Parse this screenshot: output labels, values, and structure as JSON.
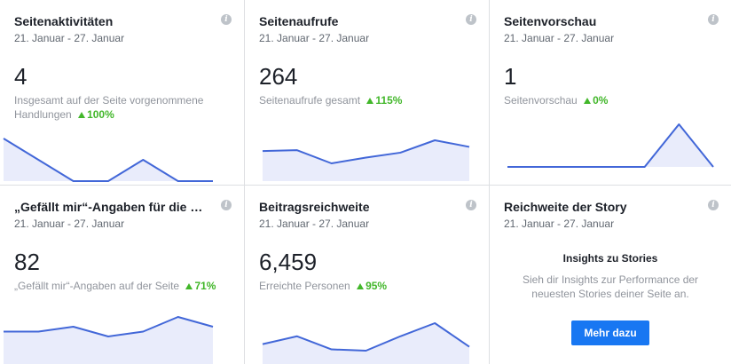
{
  "cards": [
    {
      "title": "Seitenaktivitäten",
      "date": "21. Januar - 27. Januar",
      "value": "4",
      "desc": "Insgesamt auf der Seite vorgenommene Handlungen",
      "change": "100%",
      "spark": [
        4,
        3,
        2,
        2,
        3,
        2,
        2
      ]
    },
    {
      "title": "Seitenaufrufe",
      "date": "21. Januar - 27. Januar",
      "value": "264",
      "desc": "Seitenaufrufe gesamt",
      "change": "115%",
      "spark": [
        35,
        36,
        20,
        27,
        33,
        48,
        40
      ]
    },
    {
      "title": "Seitenvorschau",
      "date": "21. Januar - 27. Januar",
      "value": "1",
      "desc": "Seitenvorschau",
      "change": "0%",
      "spark": [
        0,
        0,
        0,
        0,
        0,
        1,
        0
      ]
    },
    {
      "title": "„Gefällt mir“-Angaben für die …",
      "date": "21. Januar - 27. Januar",
      "value": "82",
      "desc": "„Gefällt mir“-Angaben auf der Seite",
      "change": "71%",
      "spark": [
        81,
        81,
        82,
        80,
        81,
        84,
        82
      ]
    },
    {
      "title": "Beitragsreichweite",
      "date": "21. Januar - 27. Januar",
      "value": "6,459",
      "desc": "Erreichte Personen",
      "change": "95%",
      "spark": [
        700,
        1000,
        500,
        450,
        1000,
        1500,
        600
      ]
    },
    {
      "title": "Reichweite der Story",
      "date": "21. Januar - 27. Januar",
      "story_heading": "Insights zu Stories",
      "story_text": "Sieh dir Insights zur Performance der neuesten Stories deiner Seite an.",
      "button_label": "Mehr dazu"
    }
  ],
  "info_icon": "i",
  "colors": {
    "line": "#4267d8",
    "fill": "#e9ecfb",
    "up": "#42b72a",
    "button": "#1877f2"
  }
}
